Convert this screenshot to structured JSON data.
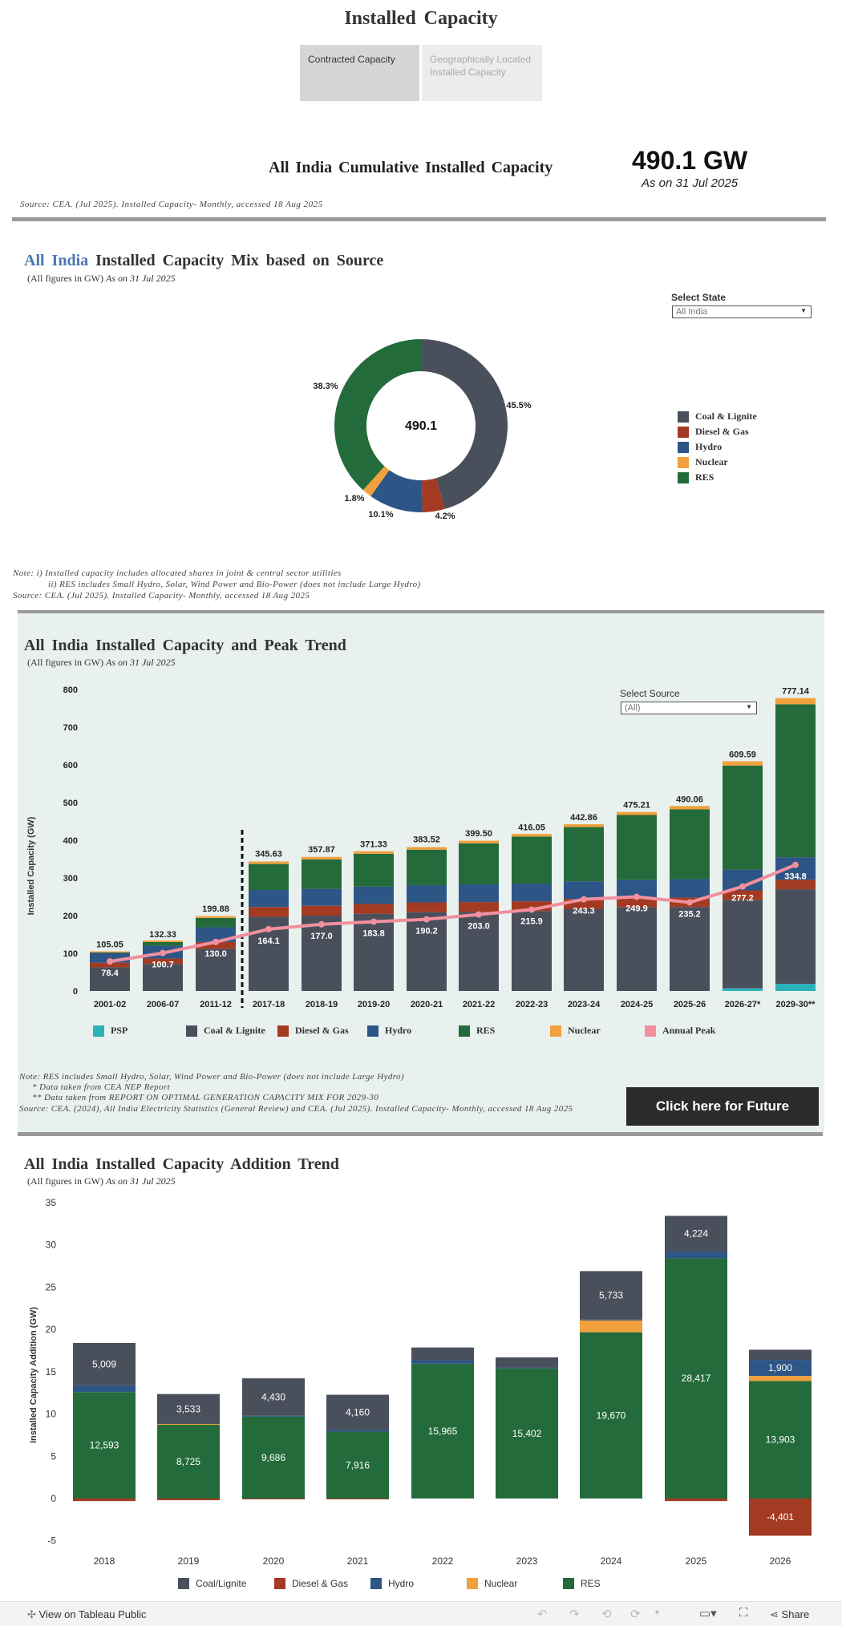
{
  "header": {
    "title": "Installed Capacity",
    "tabs": [
      {
        "label": "Contracted Capacity",
        "active": true
      },
      {
        "label": "Geographically Located Installed Capacity",
        "active": false
      }
    ]
  },
  "kpi": {
    "label": "All India Cumulative Installed Capacity",
    "value": "490.1 GW",
    "date": "As on 31 Jul 2025",
    "source": "Source: CEA. (Jul 2025). Installed Capacity- Monthly, accessed 18 Aug 2025"
  },
  "mix_section": {
    "title_highlight": "All India",
    "title_rest": "Installed Capacity Mix based on Source",
    "subtitle": "(All figures in GW)",
    "subtitle_date": "As on 31 Jul 2025",
    "select_label": "Select State",
    "select_value": "All India",
    "notes": [
      "Note: i) Installed capacity includes allocated shares in joint & central sector utilities",
      "ii) RES includes Small Hydro, Solar, Wind Power and Bio-Power (does not include Large Hydro)",
      "Source: CEA. (Jul 2025). Installed Capacity- Monthly, accessed 18 Aug 2025"
    ]
  },
  "trend_section": {
    "title": "All India Installed Capacity and Peak Trend",
    "subtitle": "(All figures in GW)",
    "subtitle_date": "As on 31 Jul 2025",
    "select_label": "Select Source",
    "select_value": "(All)",
    "notes": [
      "Note: RES includes Small Hydro, Solar, Wind Power and Bio-Power (does not include Large Hydro)",
      "* Data taken from CEA NEP Report",
      "** Data taken from REPORT ON OPTIMAL GENERATION CAPACITY MIX FOR 2029-30",
      "Source: CEA. (2024), All India Electricity Statistics (General Review) and CEA. (Jul 2025). Installed Capacity- Monthly, accessed 18 Aug 2025"
    ],
    "button_label": "Click here for Future Projection"
  },
  "addition_section": {
    "title": "All India Installed Capacity Addition Trend",
    "subtitle": "(All figures in GW)",
    "subtitle_date": "As on 31 Jul 2025"
  },
  "colors": {
    "coal": "#4a4f5c",
    "diesel": "#a33a22",
    "hydro": "#2d5586",
    "nuclear": "#f0a03c",
    "res": "#246b3b",
    "psp": "#2ab3b8",
    "peak": "#f2909e"
  },
  "chart_data": [
    {
      "type": "pie",
      "title": "All India Installed Capacity Mix based on Source",
      "center_label": "490.1",
      "categories": [
        "Coal & Lignite",
        "Diesel & Gas",
        "Hydro",
        "Nuclear",
        "RES"
      ],
      "values": [
        45.5,
        4.2,
        10.1,
        1.8,
        38.3
      ],
      "value_labels": [
        "45.5%",
        "4.2%",
        "10.1%",
        "1.8%",
        "38.3%"
      ],
      "legend": "right"
    },
    {
      "type": "bar",
      "stacked": true,
      "title": "All India Installed Capacity and Peak Trend",
      "ylabel": "Installed Capacity (GW)",
      "ylim": [
        0,
        800
      ],
      "yticks": [
        0,
        100,
        200,
        300,
        400,
        500,
        600,
        700,
        800
      ],
      "categories": [
        "2001-02",
        "2006-07",
        "2011-12",
        "2017-18",
        "2018-19",
        "2019-20",
        "2020-21",
        "2021-22",
        "2022-23",
        "2023-24",
        "2024-25",
        "2025-26",
        "2026-27*",
        "2029-30**"
      ],
      "series": [
        {
          "name": "PSP",
          "values": [
            0,
            0,
            0,
            0,
            0,
            0,
            0,
            0,
            0,
            0,
            0,
            0,
            7,
            19
          ]
        },
        {
          "name": "Coal & Lignite",
          "values": [
            63,
            72,
            112,
            197,
            200,
            205,
            209,
            210,
            212,
            218,
            222,
            223,
            235,
            251
          ]
        },
        {
          "name": "Diesel & Gas",
          "values": [
            12,
            14,
            18,
            26,
            26,
            26,
            26,
            26,
            26,
            26,
            25,
            25,
            25,
            25
          ]
        },
        {
          "name": "Hydro",
          "values": [
            26,
            34,
            39,
            45,
            45,
            46,
            46,
            47,
            47,
            47,
            48,
            49,
            55,
            60
          ]
        },
        {
          "name": "RES",
          "values": [
            1.5,
            10,
            25,
            69,
            78,
            87,
            94,
            109,
            125,
            144,
            172,
            185,
            276,
            406
          ]
        },
        {
          "name": "Nuclear",
          "values": [
            2.7,
            3.9,
            4.8,
            6.8,
            6.8,
            6.8,
            6.8,
            6.8,
            6.8,
            7.5,
            8.2,
            8.8,
            11.6,
            16.1
          ]
        }
      ],
      "totals": [
        105.05,
        132.33,
        199.88,
        345.63,
        357.87,
        371.33,
        383.52,
        399.5,
        416.05,
        442.86,
        475.21,
        490.06,
        609.59,
        777.14
      ],
      "total_labels": [
        "105.05",
        "132.33",
        "199.88",
        "345.63",
        "357.87",
        "371.33",
        "383.52",
        "399.50",
        "416.05",
        "442.86",
        "475.21",
        "490.06",
        "609.59",
        "777.14"
      ],
      "line": {
        "name": "Annual Peak",
        "values": [
          78.4,
          100.7,
          130.0,
          164.1,
          177.0,
          183.8,
          190.2,
          203.0,
          215.9,
          243.3,
          249.9,
          235.2,
          277.2,
          334.8
        ],
        "labels": [
          "78.4",
          "100.7",
          "130.0",
          "164.1",
          "177.0",
          "183.8",
          "190.2",
          "203.0",
          "215.9",
          "243.3",
          "249.9",
          "235.2",
          "277.2",
          "334.8"
        ]
      },
      "legend_labels": [
        "PSP",
        "Coal & Lignite",
        "Diesel & Gas",
        "Hydro",
        "RES",
        "Nuclear",
        "Annual Peak"
      ],
      "legend": "bottom"
    },
    {
      "type": "bar",
      "stacked": true,
      "title": "All India Installed Capacity Addition Trend",
      "ylabel": "Installed Capacity Addition (GW)",
      "ylim": [
        -5,
        35
      ],
      "yticks": [
        -5,
        0,
        5,
        10,
        15,
        20,
        25,
        30,
        35
      ],
      "categories": [
        "2018",
        "2019",
        "2020",
        "2021",
        "2022",
        "2023",
        "2024",
        "2025",
        "2026"
      ],
      "positive_series": [
        {
          "name": "RES",
          "values": [
            12.593,
            8.725,
            9.686,
            7.916,
            15.965,
            15.402,
            19.67,
            28.417,
            13.903
          ],
          "labels": [
            "12,593",
            "8,725",
            "9,686",
            "7,916",
            "15,965",
            "15,402",
            "19,670",
            "28,417",
            "13,903"
          ]
        },
        {
          "name": "Nuclear",
          "values": [
            0,
            0.1,
            0,
            0,
            0,
            0,
            1.4,
            0,
            0.6
          ],
          "labels": [
            "",
            "",
            "",
            "",
            "",
            "",
            "",
            "",
            ""
          ]
        },
        {
          "name": "Hydro",
          "values": [
            0.8,
            0,
            0.1,
            0.2,
            0.4,
            0.1,
            0.1,
            0.8,
            1.9
          ],
          "labels": [
            "",
            "",
            "",
            "",
            "",
            "",
            "",
            "",
            "1,900"
          ]
        },
        {
          "name": "Coal/Lignite",
          "values": [
            5.009,
            3.533,
            4.43,
            4.16,
            1.5,
            1.2,
            5.733,
            4.224,
            1.2
          ],
          "labels": [
            "5,009",
            "3,533",
            "4,430",
            "4,160",
            "",
            "",
            "5,733",
            "4,224",
            ""
          ]
        }
      ],
      "negative_series": [
        {
          "name": "Diesel & Gas",
          "values": [
            -0.3,
            -0.2,
            -0.1,
            -0.1,
            0,
            0,
            0,
            -0.3,
            -4.401
          ],
          "labels": [
            "",
            "",
            "",
            "",
            "",
            "",
            "",
            "",
            "-4,401"
          ]
        }
      ],
      "legend_labels": [
        "Coal/Lignite",
        "Diesel & Gas",
        "Hydro",
        "Nuclear",
        "RES"
      ],
      "legend": "bottom"
    }
  ],
  "footer": {
    "link": "View on Tableau Public",
    "share": "Share"
  }
}
